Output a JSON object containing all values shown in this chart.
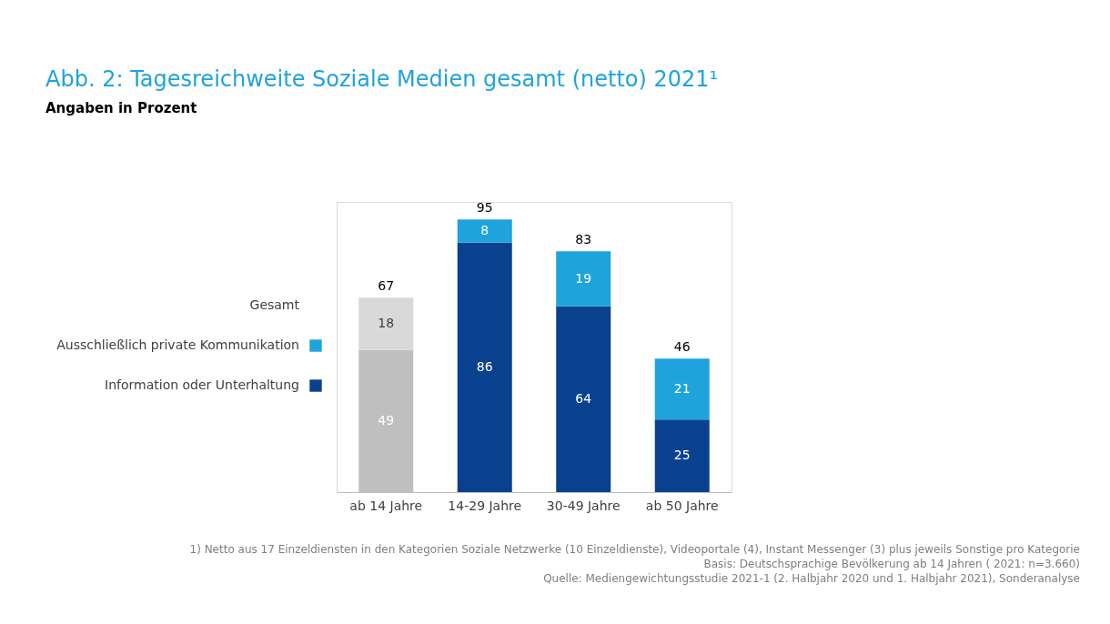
{
  "chart_data": {
    "type": "bar",
    "title": "Abb. 2: Tagesreichweite Soziale Medien gesamt (netto) 2021¹",
    "subtitle": "Angaben in Prozent",
    "categories": [
      "ab 14 Jahre",
      "14-29 Jahre",
      "30-49 Jahre",
      "ab 50 Jahre"
    ],
    "series": [
      {
        "name": "Information oder Unterhaltung",
        "color": "#0a418f",
        "colors": [
          "#bfbfbf",
          "#0a418f",
          "#0a418f",
          "#0a418f"
        ],
        "values": [
          49,
          86,
          64,
          25
        ]
      },
      {
        "name": "Ausschließlich private Kommunikation",
        "color": "#1fa3dc",
        "colors": [
          "#d9d9d9",
          "#1fa3dc",
          "#1fa3dc",
          "#1fa3dc"
        ],
        "values": [
          18,
          8,
          19,
          21
        ]
      }
    ],
    "stacked": true,
    "data_labels": true,
    "totals": [
      "67",
      "95",
      "83",
      "46"
    ],
    "ylim": [
      0,
      100
    ],
    "tick_labels": "x",
    "legend": "left",
    "legend_title": "Gesamt",
    "annotations": [
      "1) Netto aus 17 Einzeldiensten in den Kategorien Soziale Netzwerke (10 Einzeldienste), Videoportale (4), Instant Messenger (3) plus jeweils Sonstige pro Kategorie",
      "Basis: Deutschsprachige Bevölkerung ab 14 Jahren ( 2021: n=3.660)",
      "Quelle: Mediengewichtungsstudie 2021-1 (2. Halbjahr 2020 und 1. Halbjahr 2021), Sonderanalyse"
    ]
  }
}
